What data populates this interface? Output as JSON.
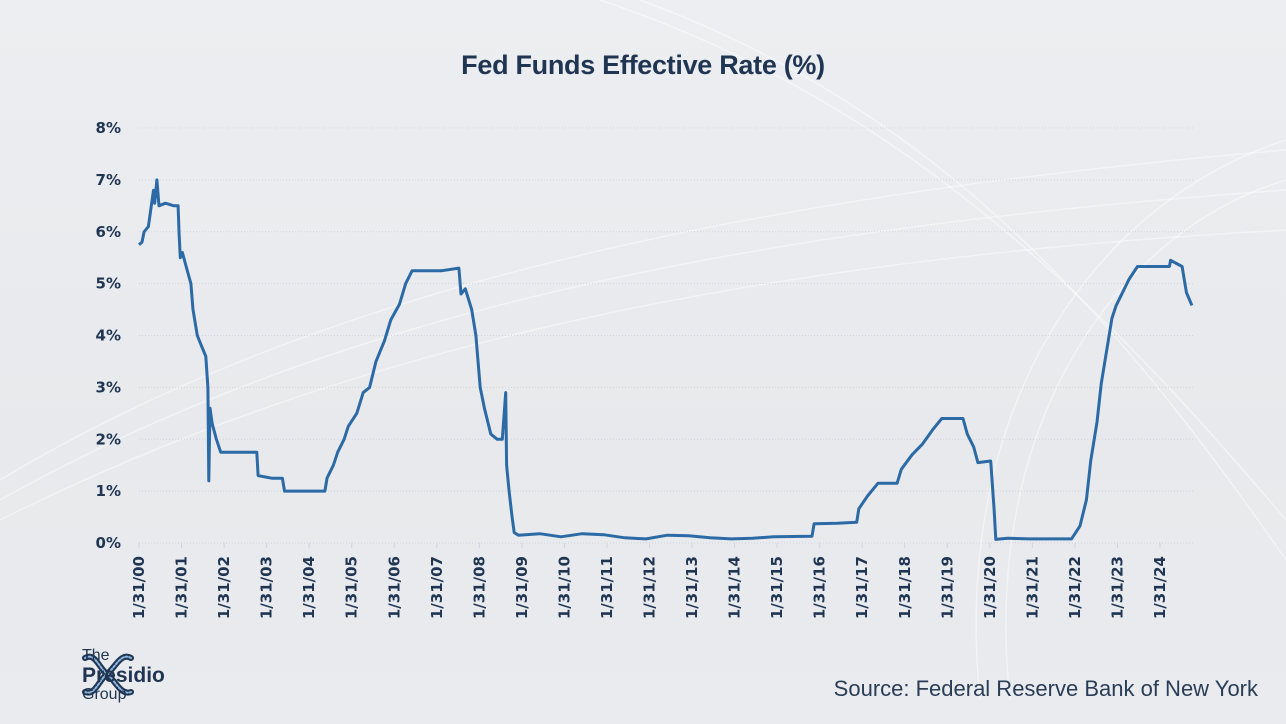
{
  "title": "Fed Funds Effective Rate (%)",
  "source": "Source: Federal Reserve Bank of New York",
  "logo": {
    "line1": "The",
    "line2": "Presidio",
    "line3": "Group",
    "icon": "presidio-knot-logo-icon"
  },
  "colors": {
    "line": "#2c6aa6",
    "text": "#1f3552",
    "grid": "#cfd6e0"
  },
  "chart_data": {
    "type": "line",
    "title": "Fed Funds Effective Rate (%)",
    "xlabel": "",
    "ylabel": "",
    "ylim": [
      0,
      8
    ],
    "xlim": [
      2000.08,
      2024.9
    ],
    "grid": true,
    "legend": "none",
    "yticks": [
      "0%",
      "1%",
      "2%",
      "3%",
      "4%",
      "5%",
      "6%",
      "7%",
      "8%"
    ],
    "xticks": [
      "1/31/00",
      "1/31/01",
      "1/31/02",
      "1/31/03",
      "1/31/04",
      "1/31/05",
      "1/31/06",
      "1/31/07",
      "1/31/08",
      "1/31/09",
      "1/31/10",
      "1/31/11",
      "1/31/12",
      "1/31/13",
      "1/31/14",
      "1/31/15",
      "1/31/16",
      "1/31/17",
      "1/31/18",
      "1/31/19",
      "1/31/20",
      "1/31/21",
      "1/31/22",
      "1/31/23",
      "1/31/24"
    ],
    "series": [
      {
        "name": "Fed Funds Effective Rate",
        "points": [
          [
            2000.08,
            5.75
          ],
          [
            2000.15,
            5.8
          ],
          [
            2000.2,
            6.0
          ],
          [
            2000.3,
            6.1
          ],
          [
            2000.37,
            6.5
          ],
          [
            2000.42,
            6.8
          ],
          [
            2000.45,
            6.55
          ],
          [
            2000.5,
            7.0
          ],
          [
            2000.55,
            6.5
          ],
          [
            2000.7,
            6.55
          ],
          [
            2000.9,
            6.5
          ],
          [
            2001.0,
            6.5
          ],
          [
            2001.02,
            6.0
          ],
          [
            2001.05,
            5.5
          ],
          [
            2001.1,
            5.6
          ],
          [
            2001.2,
            5.3
          ],
          [
            2001.3,
            5.0
          ],
          [
            2001.35,
            4.5
          ],
          [
            2001.45,
            4.0
          ],
          [
            2001.55,
            3.8
          ],
          [
            2001.65,
            3.6
          ],
          [
            2001.7,
            3.0
          ],
          [
            2001.72,
            1.2
          ],
          [
            2001.75,
            2.6
          ],
          [
            2001.8,
            2.3
          ],
          [
            2001.9,
            2.0
          ],
          [
            2002.0,
            1.75
          ],
          [
            2002.3,
            1.75
          ],
          [
            2002.6,
            1.75
          ],
          [
            2002.85,
            1.75
          ],
          [
            2002.88,
            1.3
          ],
          [
            2003.2,
            1.25
          ],
          [
            2003.45,
            1.25
          ],
          [
            2003.5,
            1.0
          ],
          [
            2003.8,
            1.0
          ],
          [
            2004.2,
            1.0
          ],
          [
            2004.45,
            1.0
          ],
          [
            2004.5,
            1.25
          ],
          [
            2004.65,
            1.5
          ],
          [
            2004.75,
            1.75
          ],
          [
            2004.9,
            2.0
          ],
          [
            2005.0,
            2.25
          ],
          [
            2005.2,
            2.5
          ],
          [
            2005.35,
            2.9
          ],
          [
            2005.5,
            3.0
          ],
          [
            2005.65,
            3.5
          ],
          [
            2005.85,
            3.9
          ],
          [
            2006.0,
            4.3
          ],
          [
            2006.2,
            4.6
          ],
          [
            2006.35,
            5.0
          ],
          [
            2006.5,
            5.25
          ],
          [
            2006.8,
            5.25
          ],
          [
            2007.2,
            5.25
          ],
          [
            2007.6,
            5.3
          ],
          [
            2007.65,
            4.8
          ],
          [
            2007.75,
            4.9
          ],
          [
            2007.9,
            4.5
          ],
          [
            2008.0,
            4.0
          ],
          [
            2008.1,
            3.0
          ],
          [
            2008.2,
            2.6
          ],
          [
            2008.35,
            2.1
          ],
          [
            2008.5,
            2.0
          ],
          [
            2008.62,
            2.0
          ],
          [
            2008.7,
            2.9
          ],
          [
            2008.72,
            1.5
          ],
          [
            2008.78,
            1.0
          ],
          [
            2008.85,
            0.5
          ],
          [
            2008.9,
            0.2
          ],
          [
            2009.0,
            0.15
          ],
          [
            2009.5,
            0.18
          ],
          [
            2010.0,
            0.12
          ],
          [
            2010.5,
            0.18
          ],
          [
            2011.0,
            0.16
          ],
          [
            2011.5,
            0.1
          ],
          [
            2012.0,
            0.08
          ],
          [
            2012.5,
            0.15
          ],
          [
            2013.0,
            0.14
          ],
          [
            2013.5,
            0.1
          ],
          [
            2014.0,
            0.08
          ],
          [
            2014.5,
            0.09
          ],
          [
            2015.0,
            0.12
          ],
          [
            2015.9,
            0.13
          ],
          [
            2015.95,
            0.37
          ],
          [
            2016.5,
            0.38
          ],
          [
            2016.95,
            0.4
          ],
          [
            2017.0,
            0.66
          ],
          [
            2017.2,
            0.9
          ],
          [
            2017.45,
            1.15
          ],
          [
            2017.9,
            1.15
          ],
          [
            2018.0,
            1.42
          ],
          [
            2018.25,
            1.7
          ],
          [
            2018.5,
            1.91
          ],
          [
            2018.75,
            2.2
          ],
          [
            2018.95,
            2.4
          ],
          [
            2019.45,
            2.4
          ],
          [
            2019.55,
            2.1
          ],
          [
            2019.7,
            1.85
          ],
          [
            2019.8,
            1.55
          ],
          [
            2020.1,
            1.58
          ],
          [
            2020.18,
            0.65
          ],
          [
            2020.22,
            0.07
          ],
          [
            2020.5,
            0.09
          ],
          [
            2021.0,
            0.08
          ],
          [
            2021.5,
            0.08
          ],
          [
            2022.0,
            0.08
          ],
          [
            2022.2,
            0.33
          ],
          [
            2022.35,
            0.83
          ],
          [
            2022.45,
            1.58
          ],
          [
            2022.6,
            2.33
          ],
          [
            2022.7,
            3.08
          ],
          [
            2022.85,
            3.83
          ],
          [
            2022.95,
            4.33
          ],
          [
            2023.05,
            4.58
          ],
          [
            2023.2,
            4.83
          ],
          [
            2023.35,
            5.08
          ],
          [
            2023.55,
            5.33
          ],
          [
            2023.9,
            5.33
          ],
          [
            2024.3,
            5.33
          ],
          [
            2024.33,
            5.45
          ],
          [
            2024.6,
            5.33
          ],
          [
            2024.7,
            4.83
          ],
          [
            2024.83,
            4.58
          ]
        ]
      }
    ]
  }
}
